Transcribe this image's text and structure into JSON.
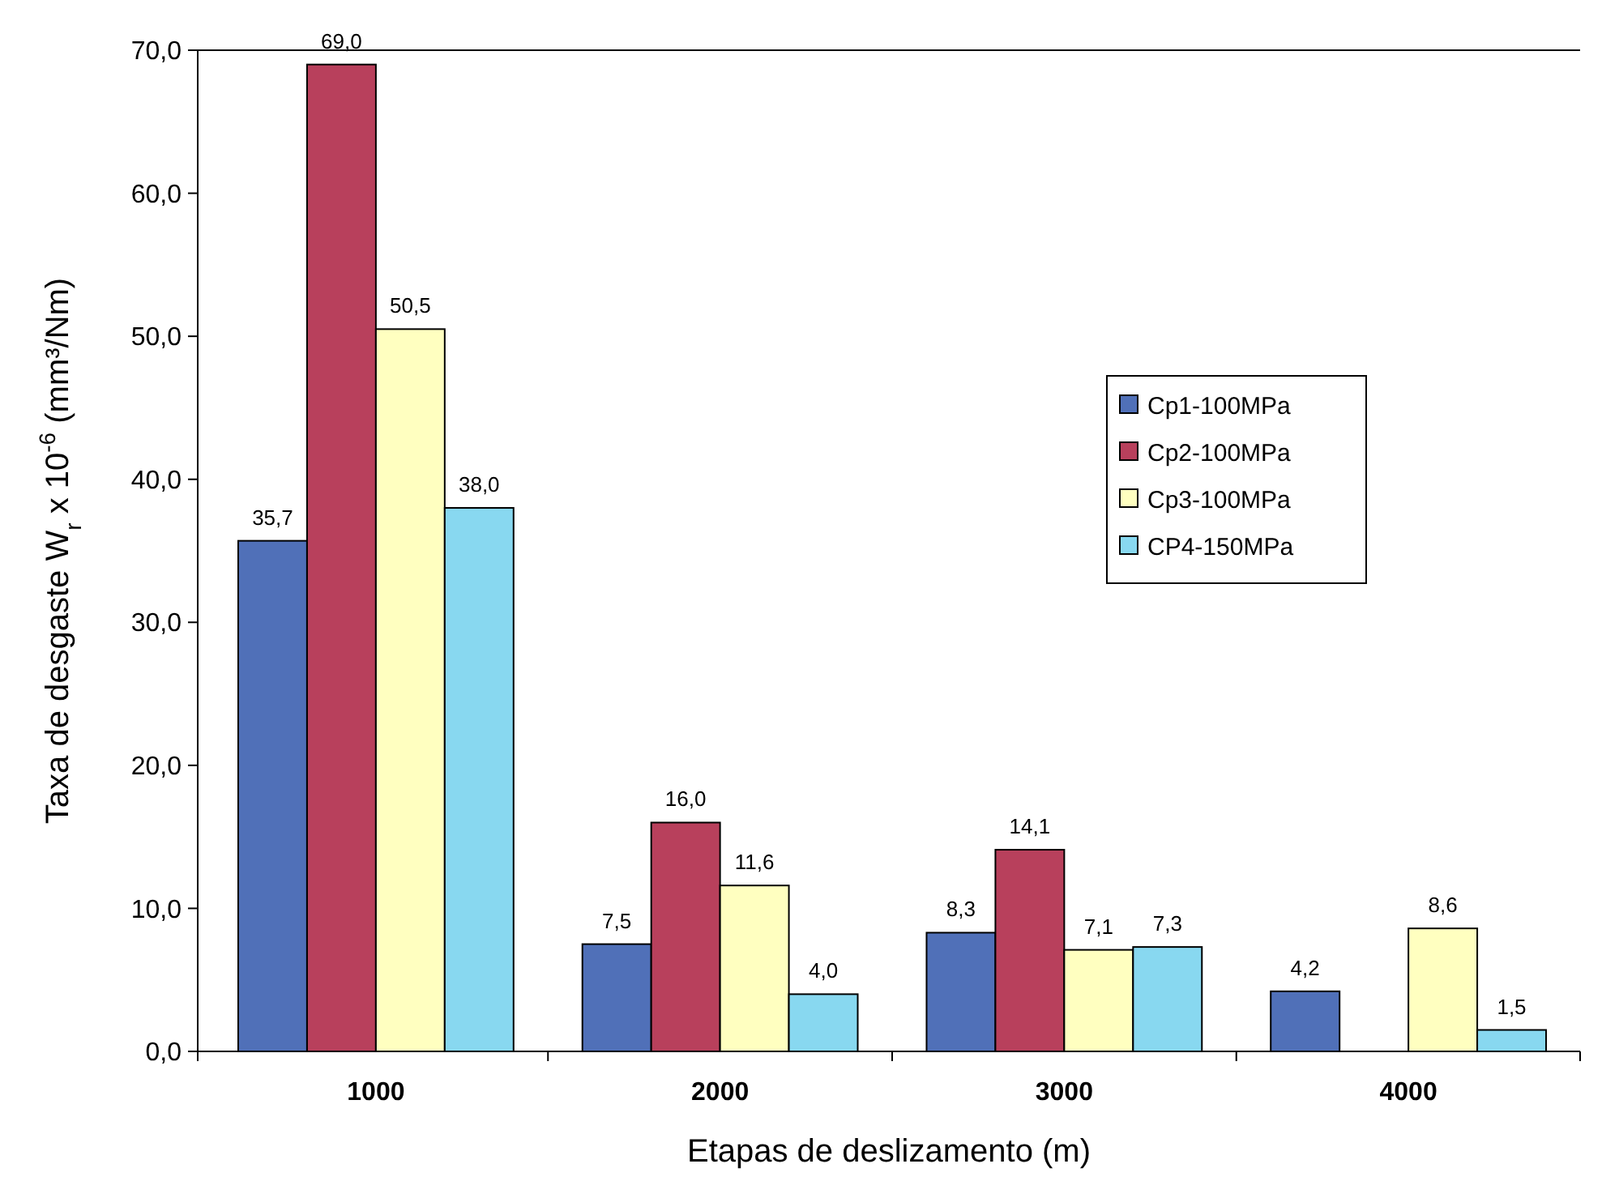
{
  "chart_data": {
    "type": "bar",
    "xlabel": "Etapas de deslizamento (m)",
    "ylabel": "Taxa de desgaste W$_{r}$ x 10$^{-6}$ (mm³/Nm)",
    "categories": [
      "1000",
      "2000",
      "3000",
      "4000"
    ],
    "series": [
      {
        "name": "Cp1-100MPa",
        "color": "#5070b8",
        "values": [
          35.7,
          7.5,
          8.3,
          4.2
        ],
        "value_labels": [
          "35,7",
          "7,5",
          "8,3",
          "4,2"
        ]
      },
      {
        "name": "Cp2-100MPa",
        "color": "#b8405c",
        "values": [
          69.0,
          16.0,
          14.1,
          null
        ],
        "value_labels": [
          "69,0",
          "16,0",
          "14,1",
          null
        ]
      },
      {
        "name": "Cp3-100MPa",
        "color": "#ffffc0",
        "values": [
          50.5,
          11.6,
          7.1,
          8.6
        ],
        "value_labels": [
          "50,5",
          "11,6",
          "7,1",
          "8,6"
        ]
      },
      {
        "name": "CP4-150MPa",
        "color": "#88d8f0",
        "values": [
          38.0,
          4.0,
          7.3,
          1.5
        ],
        "value_labels": [
          "38,0",
          "4,0",
          "7,3",
          "1,5"
        ]
      }
    ],
    "ylim": [
      0,
      70
    ],
    "yticks": [
      {
        "value": 0,
        "label": "0,0"
      },
      {
        "value": 10,
        "label": "10,0"
      },
      {
        "value": 20,
        "label": "20,0"
      },
      {
        "value": 30,
        "label": "30,0"
      },
      {
        "value": 40,
        "label": "40,0"
      },
      {
        "value": 50,
        "label": "50,0"
      },
      {
        "value": 60,
        "label": "60,0"
      },
      {
        "value": 70,
        "label": "70,0"
      }
    ],
    "grid": false,
    "legend": "right"
  }
}
